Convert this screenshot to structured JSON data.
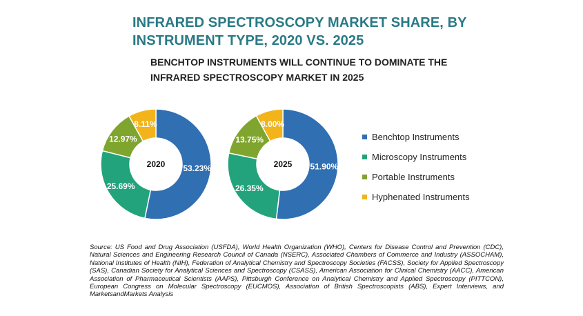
{
  "title": "INFRARED SPECTROSCOPY MARKET SHARE, BY INSTRUMENT TYPE, 2020 VS. 2025",
  "subtitle": "BENCHTOP INSTRUMENTS WILL CONTINUE TO DOMINATE THE INFRARED SPECTROSCOPY MARKET IN 2025",
  "chart_data": [
    {
      "type": "pie",
      "variant": "donut",
      "center_label": "2020",
      "categories": [
        "Benchtop Instruments",
        "Microscopy Instruments",
        "Portable Instruments",
        "Hyphenated Instruments"
      ],
      "values": [
        53.23,
        25.69,
        12.97,
        8.11
      ],
      "labels": [
        "53.23%",
        "25.69%",
        "12.97%",
        "8.11%"
      ]
    },
    {
      "type": "pie",
      "variant": "donut",
      "center_label": "2025",
      "categories": [
        "Benchtop Instruments",
        "Microscopy Instruments",
        "Portable Instruments",
        "Hyphenated Instruments"
      ],
      "values": [
        51.9,
        26.35,
        13.75,
        8.0
      ],
      "labels": [
        "51.90%",
        "26.35%",
        "13.75%",
        "8.00%"
      ]
    }
  ],
  "colors": [
    "#2f6fb2",
    "#23a37c",
    "#7fa52f",
    "#f2b41a"
  ],
  "legend": [
    {
      "label": "Benchtop Instruments",
      "color": "#2f6fb2"
    },
    {
      "label": "Microscopy Instruments",
      "color": "#23a37c"
    },
    {
      "label": "Portable Instruments",
      "color": "#7fa52f"
    },
    {
      "label": "Hyphenated Instruments",
      "color": "#f2b41a"
    }
  ],
  "source": "Source: US Food and Drug Association (USFDA), World Health Organization (WHO), Centers for Disease Control and Prevention (CDC), Natural Sciences and Engineering Research Council of Canada (NSERC), Associated Chambers of Commerce and Industry (ASSOCHAM), National Institutes of Health (NIH), Federation of Analytical Chemistry and Spectroscopy Societies (FACSS), Society for Applied Spectroscopy (SAS), Canadian Society for Analytical Sciences and Spectroscopy (CSASS), American Association for Clinical Chemistry (AACC), American Association of Pharmaceutical Scientists (AAPS), Pittsburgh Conference on Analytical Chemistry and Applied Spectroscopy (PITTCON), European Congress on Molecular Spectroscopy (EUCMOS), Association of British Spectroscopists (ABS), Expert Interviews, and MarketsandMarkets Analysis"
}
